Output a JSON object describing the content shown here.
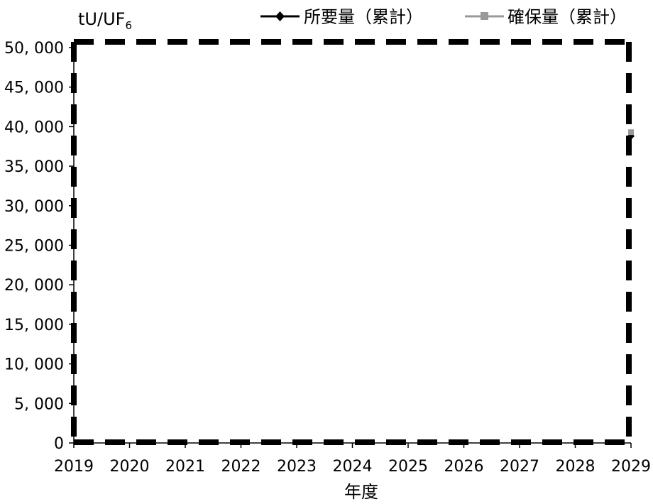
{
  "chart_data": {
    "type": "line",
    "y_unit": {
      "base": "tU/UF",
      "subscript": "6"
    },
    "xlabel": "年度",
    "x_ticks": [
      "2019",
      "2020",
      "2021",
      "2022",
      "2023",
      "2024",
      "2025",
      "2026",
      "2027",
      "2028",
      "2029"
    ],
    "y_ticks": [
      "0",
      "5, 000",
      "10, 000",
      "15, 000",
      "20, 000",
      "25, 000",
      "30, 000",
      "35, 000",
      "40, 000",
      "45, 000",
      "50, 000"
    ],
    "xlim": [
      2019,
      2029
    ],
    "ylim": [
      0,
      50000
    ],
    "legend_position": "top-right",
    "series": [
      {
        "name": "所要量（累計）",
        "color": "#000000",
        "marker": "diamond",
        "x": [
          2029
        ],
        "values": [
          38800
        ]
      },
      {
        "name": "確保量（累計）",
        "color": "#999999",
        "marker": "square",
        "x": [
          2029
        ],
        "values": [
          39300
        ]
      }
    ],
    "annotation": {
      "type": "dashed-rectangle",
      "x_range": [
        2019,
        2029
      ],
      "y_range": [
        0,
        50000
      ]
    }
  }
}
